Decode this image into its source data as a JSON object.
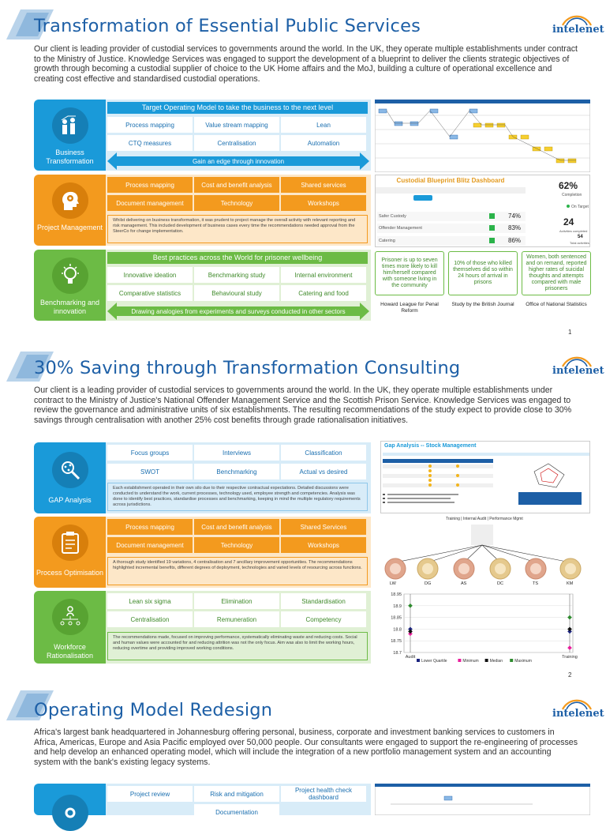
{
  "brand": {
    "logo_text": "intelenet",
    "blue": "#1d5fa6",
    "accent_blue": "#1a9ad9",
    "accent_orange": "#f39a1e",
    "accent_green": "#6cbb45"
  },
  "slide1": {
    "title": "Transformation of Essential Public Services",
    "intro": "Our client is  leading provider of custodial services to governments around the world.  In the UK, they operate multiple establishments under contract to the Ministry of Justice. Knowledge Services was engaged to support the development of a blueprint to deliver the clients  strategic objectives of growth through becoming a custodial supplier of choice to the UK Home affairs and the MoJ, building a culture of operational excellence and creating cost effective and standardised custodial operations.",
    "rows": [
      {
        "side_label": "Business Transformation",
        "icon": "people-growth-icon",
        "header": "Target Operating Model to take the business to the next level",
        "cells": [
          "Process mapping",
          "Value stream mapping",
          "Lean",
          "CTQ measures",
          "Centralisation",
          "Automation"
        ],
        "arrow": "Gain an edge through innovation"
      },
      {
        "side_label": "Project Management",
        "icon": "gear-head-icon",
        "cells": [
          "Process mapping",
          "Cost and benefit analysis",
          "Shared services",
          "Document management",
          "Technology",
          "Workshops"
        ],
        "note": "Whilst delivering on business transformation, it was prudent to project manage the overall activity with relevant reporting and risk management.  This included  development of business cases every time the recommendations needed approval from  the SteerCo for change implementation."
      },
      {
        "side_label": "Benchmarking and innovation",
        "icon": "lightbulb-icon",
        "header": "Best practices across the World for prisoner wellbeing",
        "cells": [
          "Innovative ideation",
          "Benchmarking study",
          "Internal environment",
          "Comparative statistics",
          "Behavioural study",
          "Catering and food"
        ],
        "arrow": "Drawing analogies from experiments and surveys conducted in other sectors"
      }
    ],
    "dashboard": {
      "title": "Custodial Blueprint Blitz Dashboard",
      "big_value": "62%",
      "big_label": "Completion",
      "big_legend": "On Target",
      "count_value": "24",
      "count_label": "Activities completed",
      "total_value": "54",
      "total_label": "Total activities",
      "items": [
        {
          "name": "Safer Custody",
          "pct": "74%"
        },
        {
          "name": "Offender Management",
          "pct": "83%"
        },
        {
          "name": "Catering",
          "pct": "86%"
        }
      ]
    },
    "facts": [
      {
        "text": "Prisoner is up to seven times more likely to kill him/herself compared with someone living in the community",
        "source": "Howard League for Penal Reform"
      },
      {
        "text": "10% of those who killed themselves did so within 24 hours of arrival in prisons",
        "source": "Study by the British Journal"
      },
      {
        "text": "Women, both sentenced and on remand, reported higher rates of suicidal thoughts and attempts compared with male prisoners",
        "source": "Office of National Statistics"
      }
    ],
    "page": "1"
  },
  "slide2": {
    "title": "30% Saving through Transformation Consulting",
    "intro": "Our client is a leading provider of custodial services to governments around the world.  In the UK, they operate multiple establishments under contract to the Ministry of Justice's National Offender Management Service and the Scottish Prison Service. Knowledge Services was engaged to review the governance and administrative units of six establishments. The resulting recommendations of the study expect to provide close to 30% savings through centralisation with another 25% cost benefits through grade rationalisation initiatives.",
    "rows": [
      {
        "side_label": "GAP Analysis",
        "icon": "magnifier-network-icon",
        "cells": [
          "Focus groups",
          "Interviews",
          "Classification",
          "SWOT",
          "Benchmarking",
          "Actual vs desired"
        ],
        "note": "Each establishment operated in their own silo due to their respective contractual expectations. Detailed discussions were conducted to understand the work, current processes, technology used, employee strength and competencies. Analysis was done to identify best practices, standardise processes and benchmarking, keeping in mind the multiple regulatory requirements across jurisdictions."
      },
      {
        "side_label": "Process Optimisation",
        "icon": "clipboard-icon",
        "cells": [
          "Process mapping",
          "Cost and benefit analysis",
          "Shared Services",
          "Document management",
          "Technology",
          "Workshops"
        ],
        "note": "A thorough study identified 19 variations, 4 centralisation and 7 ancillary improvement opportunities. The recommendations highlighted incremental benefits, different degrees of deployment, technologies and varied levels of resourcing across functions."
      },
      {
        "side_label": "Workforce Rationalisation",
        "icon": "org-chart-icon",
        "cells": [
          "Lean six sigma",
          "Elimination",
          "Standardisation",
          "Centralisation",
          "Remuneration",
          "Competency"
        ],
        "note": "The recommendations made, focused on improving performance, systematically eliminating waste and reducing costs. Social and human values were accounted for and reducing attrition was not the only focus.  Aim was also to limit the working hours, reducing overtime and providing improved working conditions."
      }
    ],
    "gap_panel": {
      "title": "Gap Analysis -- Stock Management"
    },
    "org_header": "Training  |  Internal Audit  |  Performance Mgmt",
    "org_nodes": [
      "LW",
      "DG",
      "AS",
      "DC",
      "TS",
      "KM"
    ],
    "chart_data": {
      "type": "scatter",
      "categories": [
        "Audit",
        "Training"
      ],
      "ylim": [
        18.7,
        18.95
      ],
      "yticks": [
        "18.95",
        "18.9",
        "18.85",
        "18.8",
        "18.75",
        "18.7"
      ],
      "series": [
        {
          "name": "Lower Quartile",
          "color": "#1a237e",
          "values": [
            18.8,
            18.79
          ]
        },
        {
          "name": "Minimum",
          "color": "#e91e9c",
          "values": [
            18.78,
            18.72
          ]
        },
        {
          "name": "Median",
          "color": "#111111",
          "values": [
            18.79,
            18.8
          ]
        },
        {
          "name": "Maximum",
          "color": "#2e8b2e",
          "values": [
            18.9,
            18.85
          ]
        }
      ]
    },
    "page": "2"
  },
  "slide3": {
    "title": "Operating Model Redesign",
    "intro": "Africa's largest bank headquartered in Johannesburg offering personal, business, corporate and investment banking services to customers in Africa, Americas, Europe and Asia Pacific employed over 50,000 people. Our consultants were engaged to support the re-engineering of processes and help develop an enhanced operating model, which will include the integration of a new portfolio management system and an accounting system with the bank's existing legacy systems.",
    "cells": [
      "Project review",
      "Risk and mitigation",
      "Project health check dashboard",
      "Documentation"
    ]
  }
}
